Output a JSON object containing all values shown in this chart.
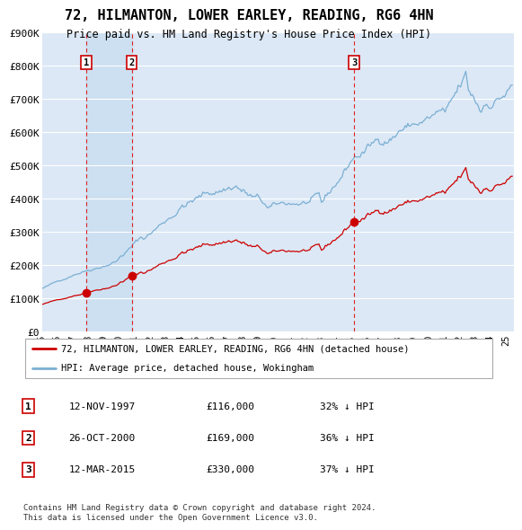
{
  "title": "72, HILMANTON, LOWER EARLEY, READING, RG6 4HN",
  "subtitle": "Price paid vs. HM Land Registry's House Price Index (HPI)",
  "ylim": [
    0,
    900000
  ],
  "yticks": [
    0,
    100000,
    200000,
    300000,
    400000,
    500000,
    600000,
    700000,
    800000,
    900000
  ],
  "ytick_labels": [
    "£0",
    "£100K",
    "£200K",
    "£300K",
    "£400K",
    "£500K",
    "£600K",
    "£700K",
    "£800K",
    "£900K"
  ],
  "background_color": "#ffffff",
  "plot_background": "#dce8f5",
  "grid_color": "#ffffff",
  "hpi_color": "#7bafd4",
  "hpi_fill_color": "#c5d9ed",
  "price_color": "#cc0000",
  "vline_color": "#dd2222",
  "purchase_dates": [
    1997.87,
    2000.82,
    2015.19
  ],
  "purchase_prices": [
    116000,
    169000,
    330000
  ],
  "purchase_labels": [
    "1",
    "2",
    "3"
  ],
  "shade_between_1_2": true,
  "legend_label_red": "72, HILMANTON, LOWER EARLEY, READING, RG6 4HN (detached house)",
  "legend_label_blue": "HPI: Average price, detached house, Wokingham",
  "table_rows": [
    [
      "1",
      "12-NOV-1997",
      "£116,000",
      "32% ↓ HPI"
    ],
    [
      "2",
      "26-OCT-2000",
      "£169,000",
      "36% ↓ HPI"
    ],
    [
      "3",
      "12-MAR-2015",
      "£330,000",
      "37% ↓ HPI"
    ]
  ],
  "footer": "Contains HM Land Registry data © Crown copyright and database right 2024.\nThis data is licensed under the Open Government Licence v3.0.",
  "xlim_start": 1995.0,
  "xlim_end": 2025.5,
  "xtick_years": [
    1995,
    1996,
    1997,
    1998,
    1999,
    2000,
    2001,
    2002,
    2003,
    2004,
    2005,
    2006,
    2007,
    2008,
    2009,
    2010,
    2011,
    2012,
    2013,
    2014,
    2015,
    2016,
    2017,
    2018,
    2019,
    2020,
    2021,
    2022,
    2023,
    2024,
    2025
  ]
}
